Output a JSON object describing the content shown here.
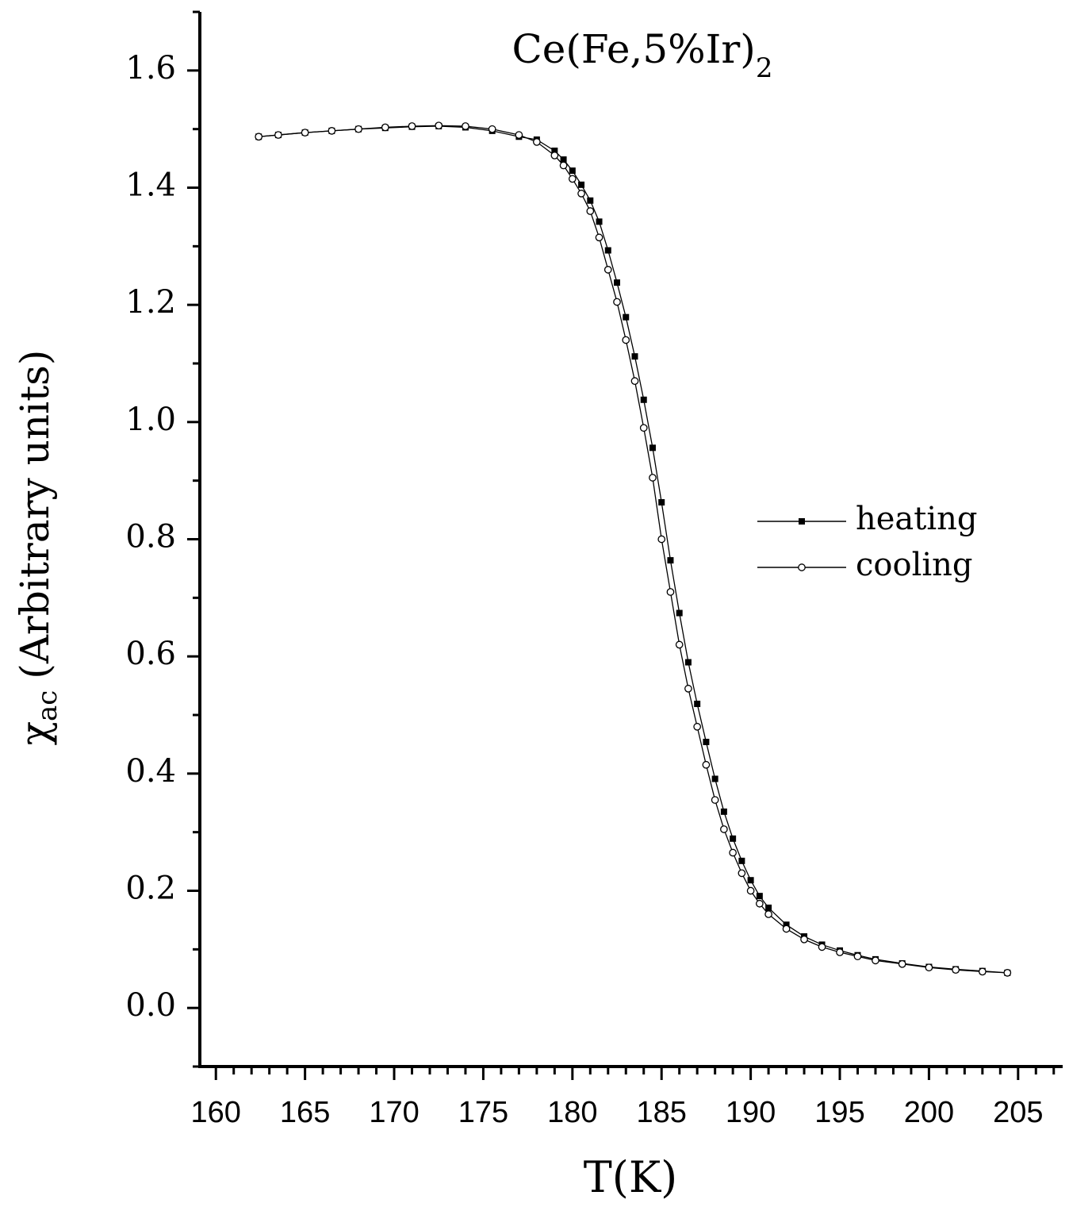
{
  "chart_data": {
    "type": "line",
    "title": {
      "text": "Ce(Fe,5%Ir)",
      "sub": "2"
    },
    "xlabel": "T(K)",
    "ylabel": {
      "symbol": "χ",
      "sub": "ac",
      "text": "(Arbitrary units)"
    },
    "x": [
      162.4,
      163.5,
      165,
      166.5,
      168,
      169.5,
      171,
      172.5,
      174,
      175.5,
      177,
      178,
      179,
      179.5,
      180,
      180.5,
      181,
      181.5,
      182,
      182.5,
      183,
      183.5,
      184,
      184.5,
      185,
      185.5,
      186,
      186.5,
      187,
      187.5,
      188,
      188.5,
      189,
      189.5,
      190,
      190.5,
      191,
      192,
      193,
      194,
      195,
      196,
      197,
      198.5,
      200,
      201.5,
      203,
      204.4
    ],
    "series": [
      {
        "name": "heating",
        "color": "#000000",
        "marker": "square",
        "values": [
          1.487,
          1.49,
          1.494,
          1.497,
          1.5,
          1.502,
          1.504,
          1.505,
          1.503,
          1.497,
          1.487,
          1.482,
          1.463,
          1.448,
          1.429,
          1.405,
          1.378,
          1.342,
          1.293,
          1.238,
          1.179,
          1.112,
          1.038,
          0.956,
          0.863,
          0.764,
          0.674,
          0.59,
          0.519,
          0.454,
          0.391,
          0.335,
          0.289,
          0.251,
          0.218,
          0.191,
          0.171,
          0.142,
          0.122,
          0.108,
          0.098,
          0.09,
          0.083,
          0.076,
          0.07,
          0.066,
          0.063,
          0.06
        ]
      },
      {
        "name": "cooling",
        "color": "#000000",
        "marker": "circle",
        "values": [
          1.487,
          1.49,
          1.494,
          1.497,
          1.5,
          1.503,
          1.505,
          1.506,
          1.505,
          1.5,
          1.49,
          1.478,
          1.455,
          1.438,
          1.415,
          1.39,
          1.36,
          1.315,
          1.26,
          1.205,
          1.14,
          1.07,
          0.99,
          0.905,
          0.8,
          0.71,
          0.62,
          0.545,
          0.48,
          0.415,
          0.355,
          0.305,
          0.265,
          0.23,
          0.2,
          0.178,
          0.16,
          0.135,
          0.117,
          0.104,
          0.095,
          0.088,
          0.081,
          0.075,
          0.069,
          0.065,
          0.062,
          0.06
        ]
      }
    ],
    "xlim": [
      159.1,
      207.5
    ],
    "ylim": [
      -0.1,
      1.7
    ],
    "xticks": [
      160,
      165,
      170,
      175,
      180,
      185,
      190,
      195,
      200,
      205
    ],
    "yticks": [
      {
        "value": 0,
        "label": "0.0"
      },
      0.2,
      0.4,
      0.6,
      0.8,
      {
        "value": 1,
        "label": "1.0"
      },
      1.2,
      1.4,
      1.6
    ],
    "xminorticks": [
      161,
      162,
      163,
      164,
      166,
      167,
      168,
      169,
      171,
      172,
      173,
      174,
      176,
      177,
      178,
      179,
      181,
      182,
      183,
      184,
      186,
      187,
      188,
      189,
      191,
      192,
      193,
      194,
      196,
      197,
      198,
      199,
      201,
      202,
      203,
      204,
      206,
      207
    ],
    "yminorticks": [
      -0.1,
      0.1,
      0.3,
      0.5,
      0.7,
      0.9,
      1.1,
      1.3,
      1.5,
      1.7
    ],
    "grid": false,
    "legend_position": "right"
  }
}
